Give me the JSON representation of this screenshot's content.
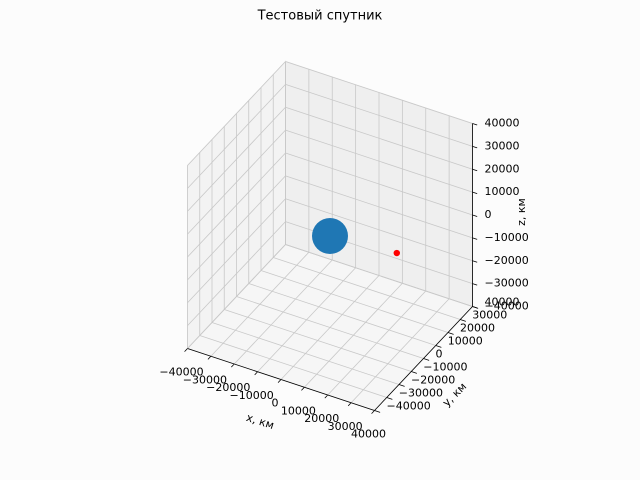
{
  "chart_data": {
    "type": "scatter3d",
    "title": "Тестовый спутник",
    "xlabel": "x, км",
    "ylabel": "y, км",
    "zlabel": "z, км",
    "xlim": [
      -40000,
      40000
    ],
    "ylim": [
      -40000,
      40000
    ],
    "zlim": [
      -40000,
      40000
    ],
    "xticks": [
      {
        "value": -40000,
        "label": "−40000"
      },
      {
        "value": -30000,
        "label": "−30000"
      },
      {
        "value": -20000,
        "label": "−20000"
      },
      {
        "value": -10000,
        "label": "−10000"
      },
      0,
      10000,
      20000,
      30000,
      40000
    ],
    "yticks": [
      {
        "value": -40000,
        "label": "−40000"
      },
      {
        "value": -30000,
        "label": "−30000"
      },
      {
        "value": -20000,
        "label": "−20000"
      },
      {
        "value": -10000,
        "label": "−10000"
      },
      0,
      10000,
      20000,
      30000,
      40000
    ],
    "zticks": [
      {
        "value": -40000,
        "label": "−40000"
      },
      {
        "value": -30000,
        "label": "−30000"
      },
      {
        "value": -20000,
        "label": "−20000"
      },
      {
        "value": -10000,
        "label": "−10000"
      },
      0,
      10000,
      20000,
      30000,
      40000
    ],
    "grid": true,
    "series": [
      {
        "color": "#1f77b4",
        "x": [
          0
        ],
        "y": [
          0
        ],
        "z": [
          0
        ]
      },
      {
        "color": "#ff0000",
        "x": [
          27000
        ],
        "y": [
          3000
        ],
        "z": [
          0
        ]
      }
    ]
  }
}
